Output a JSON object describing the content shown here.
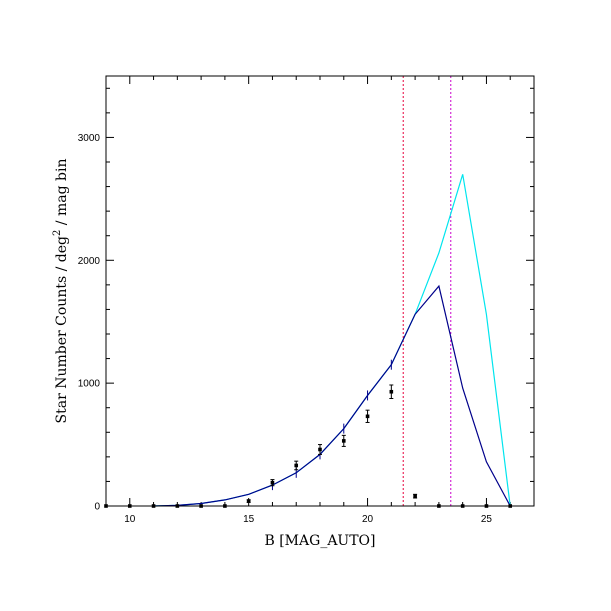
{
  "chart_data": {
    "type": "line",
    "title": "",
    "xlabel": "B [MAG_AUTO]",
    "ylabel_parts": [
      "Star Number Counts / deg",
      "2",
      " / mag bin"
    ],
    "xlim": [
      9,
      27
    ],
    "ylim": [
      0,
      3500
    ],
    "x_ticks": [
      10,
      15,
      20,
      25
    ],
    "y_ticks": [
      0,
      1000,
      2000,
      3000
    ],
    "x_tick_labels": [
      "10",
      "15",
      "20",
      "25"
    ],
    "y_tick_labels": [
      "0",
      "1000",
      "2000",
      "3000"
    ],
    "x_minor_step": 1,
    "y_minor_step": 200,
    "grid": false,
    "colors": {
      "model_total": "#00e5ee",
      "model_corrected": "#00008b",
      "vline_red": "#e8003c",
      "vline_magenta": "#cc00cc",
      "data_points": "#000000"
    },
    "series": [
      {
        "key": "model_total",
        "x": [
          11,
          12,
          13,
          14,
          15,
          16,
          17,
          18,
          19,
          20,
          21,
          22,
          23,
          24,
          25,
          26
        ],
        "y": [
          0,
          5,
          20,
          50,
          95,
          170,
          270,
          420,
          630,
          900,
          1150,
          1560,
          2060,
          2700,
          1560,
          0
        ]
      },
      {
        "key": "model_corrected",
        "x": [
          11,
          12,
          13,
          14,
          15,
          16,
          17,
          18,
          19,
          20,
          21,
          22,
          23,
          24,
          25,
          26
        ],
        "y": [
          0,
          5,
          20,
          50,
          95,
          170,
          270,
          420,
          630,
          900,
          1150,
          1560,
          1790,
          960,
          360,
          0
        ]
      }
    ],
    "points": {
      "x": [
        9,
        10,
        11,
        12,
        13,
        14,
        15,
        16,
        17,
        18,
        19,
        20,
        21,
        22,
        23,
        24,
        25,
        26
      ],
      "y": [
        0,
        0,
        0,
        0,
        0,
        0,
        40,
        190,
        330,
        460,
        530,
        730,
        930,
        80,
        0,
        0,
        0,
        0
      ],
      "err": [
        0,
        0,
        0,
        0,
        0,
        0,
        10,
        25,
        35,
        40,
        45,
        50,
        55,
        15,
        0,
        0,
        0,
        0
      ]
    },
    "error_ticks": {
      "x": [
        16,
        17,
        18,
        19,
        20,
        21
      ],
      "y": [
        170,
        270,
        420,
        630,
        900,
        1150
      ]
    },
    "vlines": [
      {
        "x": 21.5,
        "color_key": "vline_red"
      },
      {
        "x": 23.5,
        "color_key": "vline_magenta"
      }
    ]
  }
}
